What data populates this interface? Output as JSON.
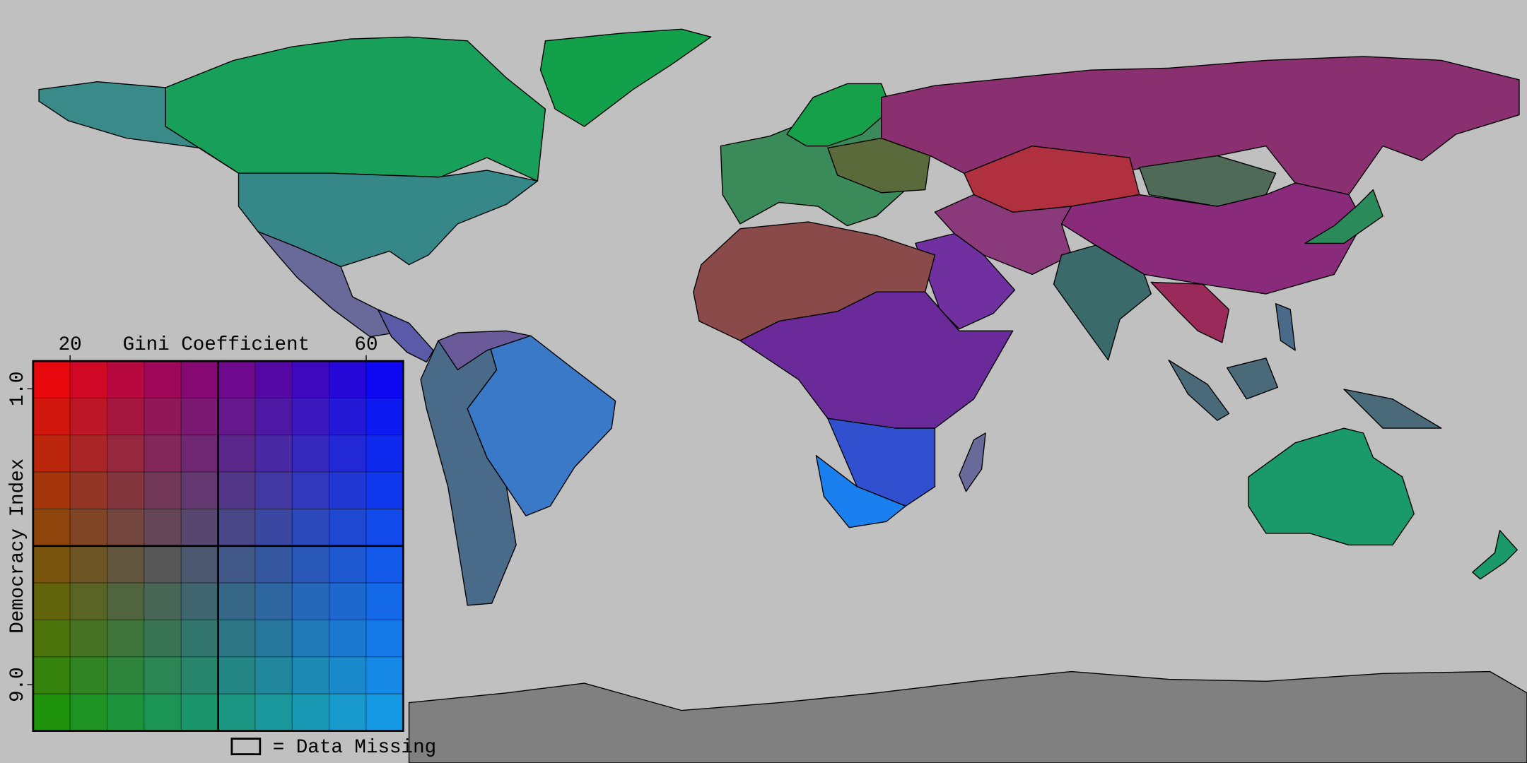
{
  "legend": {
    "x_title": "Gini Coefficient",
    "y_title": "Democracy Index",
    "xlim": [
      15,
      65
    ],
    "xticks": [
      20,
      60
    ],
    "ylim": [
      0.25,
      10.25
    ],
    "yticks": [
      {
        "value": 1.0,
        "label": "1.0"
      },
      {
        "value": 9.0,
        "label": "9.0"
      }
    ],
    "y_inverted": true,
    "corner_colors": {
      "top_left": "#ff0000",
      "top_right": "#0000ff",
      "bottom_left": "#149900",
      "bottom_right": "#17a2ee"
    }
  },
  "missing_note": "= Data Missing"
}
